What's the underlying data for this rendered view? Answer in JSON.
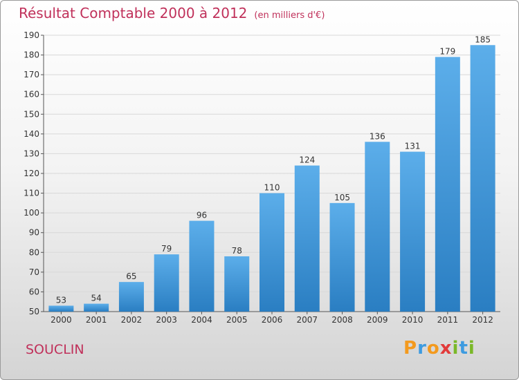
{
  "title": "Résultat Comptable 2000 à 2012",
  "subtitle": "(en milliers d'€)",
  "commune": "SOUCLIN",
  "logo": {
    "text": "Proxiti",
    "colors": [
      "#f39a1e",
      "#3d9be0",
      "#f39a1e",
      "#e23b3b",
      "#7ab828",
      "#3d9be0",
      "#7ab828"
    ]
  },
  "colors": {
    "bar_top": "#5caeea",
    "bar_bottom": "#2a7ec2",
    "title": "#c0305a",
    "grid": "#d8d8d8"
  },
  "chart_data": {
    "type": "bar",
    "categories": [
      "2000",
      "2001",
      "2002",
      "2003",
      "2004",
      "2005",
      "2006",
      "2007",
      "2008",
      "2009",
      "2010",
      "2011",
      "2012"
    ],
    "values": [
      53,
      54,
      65,
      79,
      96,
      78,
      110,
      124,
      105,
      136,
      131,
      179,
      185
    ],
    "ylim": [
      50,
      190
    ],
    "yticks": [
      50,
      60,
      70,
      80,
      90,
      100,
      110,
      120,
      130,
      140,
      150,
      160,
      170,
      180,
      190
    ],
    "grid": true,
    "title": "Résultat Comptable 2000 à 2012",
    "xlabel": "",
    "ylabel": ""
  }
}
